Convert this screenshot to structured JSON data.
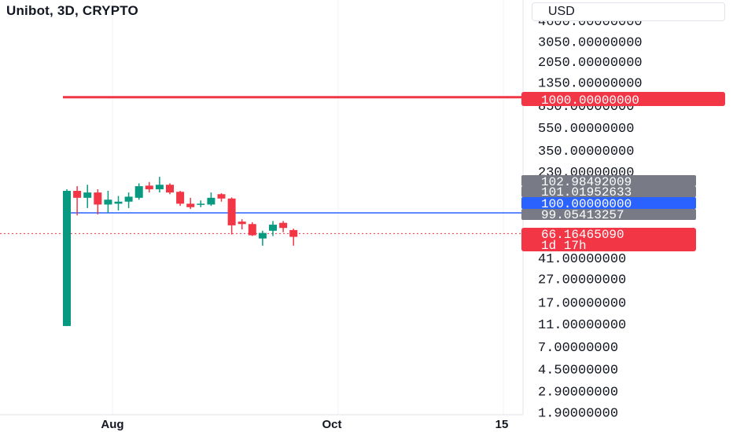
{
  "header": {
    "title": "Unibot, 3D, CRYPTO",
    "currency": "USD"
  },
  "colors": {
    "up": "#089981",
    "down": "#f23645",
    "resistance": "#f23645",
    "support": "#2962ff",
    "current": "#f23645",
    "tag_gray": "#787b86",
    "grid": "#f0f3fa",
    "axis_text": "#131722"
  },
  "chart_data": {
    "type": "candlestick",
    "scale": "log",
    "x_axis": {
      "ticks": [
        "Aug",
        "Oct",
        "15"
      ]
    },
    "y_axis": {
      "ticks": [
        "4600.00000000",
        "3050.00000000",
        "2050.00000000",
        "1350.00000000",
        "850.00000000",
        "550.00000000",
        "350.00000000",
        "230.00000000",
        "41.00000000",
        "27.00000000",
        "17.00000000",
        "11.00000000",
        "7.00000000",
        "4.50000000",
        "2.90000000",
        "1.90000000"
      ]
    },
    "candles": [
      {
        "o": 10.5,
        "h": 160,
        "l": 10.5,
        "c": 155
      },
      {
        "o": 155,
        "h": 170,
        "l": 95,
        "c": 135
      },
      {
        "o": 135,
        "h": 175,
        "l": 110,
        "c": 150
      },
      {
        "o": 150,
        "h": 160,
        "l": 97,
        "c": 118
      },
      {
        "o": 118,
        "h": 155,
        "l": 100,
        "c": 130
      },
      {
        "o": 120,
        "h": 140,
        "l": 105,
        "c": 125
      },
      {
        "o": 125,
        "h": 150,
        "l": 110,
        "c": 138
      },
      {
        "o": 135,
        "h": 180,
        "l": 130,
        "c": 170
      },
      {
        "o": 172,
        "h": 185,
        "l": 150,
        "c": 160
      },
      {
        "o": 160,
        "h": 205,
        "l": 150,
        "c": 175
      },
      {
        "o": 175,
        "h": 180,
        "l": 145,
        "c": 150
      },
      {
        "o": 152,
        "h": 155,
        "l": 115,
        "c": 120
      },
      {
        "o": 120,
        "h": 135,
        "l": 108,
        "c": 112
      },
      {
        "o": 118,
        "h": 128,
        "l": 112,
        "c": 120
      },
      {
        "o": 118,
        "h": 150,
        "l": 115,
        "c": 135
      },
      {
        "o": 145,
        "h": 148,
        "l": 125,
        "c": 133
      },
      {
        "o": 133,
        "h": 136,
        "l": 65,
        "c": 78
      },
      {
        "o": 84,
        "h": 88,
        "l": 72,
        "c": 80
      },
      {
        "o": 80,
        "h": 83,
        "l": 63,
        "c": 64
      },
      {
        "o": 60,
        "h": 70,
        "l": 52,
        "c": 67
      },
      {
        "o": 70,
        "h": 85,
        "l": 63,
        "c": 79
      },
      {
        "o": 82,
        "h": 85,
        "l": 68,
        "c": 74
      },
      {
        "o": 71,
        "h": 73,
        "l": 52,
        "c": 62
      }
    ],
    "horizontal_lines": [
      {
        "value": 1000,
        "label": "1000.00000000",
        "style": "solid",
        "color": "#f23645"
      },
      {
        "value": 100,
        "label": "100.00000000",
        "style": "solid",
        "color": "#2962ff"
      },
      {
        "value": 66.1646509,
        "label": "66.16465090",
        "style": "dotted",
        "color": "#f23645"
      }
    ],
    "price_tags": [
      {
        "label": "102.98492009",
        "color": "#787b86"
      },
      {
        "label": "101.01952633",
        "color": "#787b86"
      },
      {
        "label": "100.00000000",
        "color": "#2962ff"
      },
      {
        "label": "99.05413257",
        "color": "#787b86"
      },
      {
        "label": "66.16465090",
        "color": "#f23645"
      },
      {
        "label": "1d 17h",
        "color": "#f23645"
      },
      {
        "label": "1000.00000000",
        "color": "#f23645"
      }
    ]
  }
}
